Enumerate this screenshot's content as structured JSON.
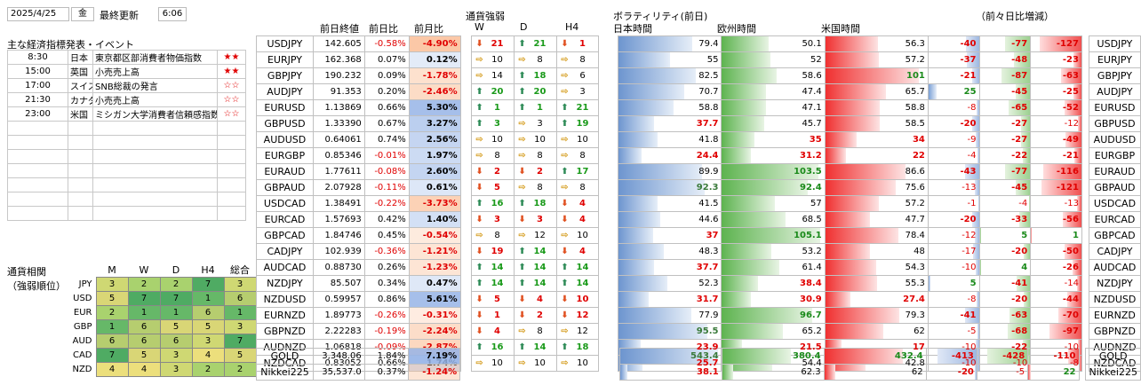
{
  "header": {
    "date": "2025/4/25",
    "weekday": "金",
    "updated_label": "最終更新",
    "time": "6:06"
  },
  "events": {
    "title": "主な経済指標発表・イベント",
    "rows": [
      {
        "time": "8:30",
        "country": "日本",
        "name": "東京都区部消費者物価指数",
        "stars": "★★"
      },
      {
        "time": "15:00",
        "country": "英国",
        "name": "小売売上高",
        "stars": "★★"
      },
      {
        "time": "17:00",
        "country": "スイス",
        "name": "SNB総裁の発言",
        "stars": "☆☆"
      },
      {
        "time": "21:30",
        "country": "カナダ",
        "name": "小売売上高",
        "stars": "☆☆"
      },
      {
        "time": "23:00",
        "country": "米国",
        "name": "ミシガン大学消費者信頼感指数",
        "stars": "☆☆"
      },
      {
        "time": "",
        "country": "",
        "name": "",
        "stars": ""
      },
      {
        "time": "",
        "country": "",
        "name": "",
        "stars": ""
      },
      {
        "time": "",
        "country": "",
        "name": "",
        "stars": ""
      },
      {
        "time": "",
        "country": "",
        "name": "",
        "stars": ""
      },
      {
        "time": "",
        "country": "",
        "name": "",
        "stars": ""
      },
      {
        "time": "",
        "country": "",
        "name": "",
        "stars": ""
      },
      {
        "time": "",
        "country": "",
        "name": "",
        "stars": ""
      }
    ]
  },
  "correlation": {
    "title1": "通貨相関",
    "title2": "（強弱順位）",
    "cols": [
      "M",
      "W",
      "D",
      "H4",
      "総合"
    ],
    "rows": [
      {
        "cur": "JPY",
        "v": [
          3,
          2,
          2,
          7,
          3
        ]
      },
      {
        "cur": "USD",
        "v": [
          5,
          7,
          7,
          1,
          6
        ]
      },
      {
        "cur": "EUR",
        "v": [
          2,
          1,
          1,
          6,
          1
        ]
      },
      {
        "cur": "GBP",
        "v": [
          1,
          6,
          5,
          5,
          3
        ]
      },
      {
        "cur": "AUD",
        "v": [
          6,
          6,
          6,
          3,
          7
        ]
      },
      {
        "cur": "CAD",
        "v": [
          7,
          5,
          3,
          4,
          5
        ]
      },
      {
        "cur": "NZD",
        "v": [
          4,
          4,
          3,
          2,
          2
        ]
      }
    ]
  },
  "col_headers": {
    "prev": "前日終値",
    "dchg": "前日比",
    "mchg": "前月比",
    "strength": "通貨強弱",
    "W": "W",
    "D": "D",
    "H4": "H4",
    "vol": "ボラティリティ(前日)",
    "jp": "日本時間",
    "eu": "欧州時間",
    "us": "米国時間",
    "diff": "（前々日比増減）"
  },
  "rows": [
    {
      "pair": "USDJPY",
      "prev": "142.605",
      "d": "-0.58%",
      "m": "-4.90%",
      "w": [
        "dn",
        "21"
      ],
      "dd": [
        "up",
        "21"
      ],
      "h4": [
        "dn",
        "1"
      ],
      "jp": 79.4,
      "eu": 50.1,
      "us": 56.3,
      "jd": -40,
      "ed": -77,
      "ud": -127
    },
    {
      "pair": "EURJPY",
      "prev": "162.368",
      "d": "0.07%",
      "m": "0.12%",
      "w": [
        "fl",
        "10"
      ],
      "dd": [
        "fl",
        "8"
      ],
      "h4": [
        "fl",
        "8"
      ],
      "jp": 55.0,
      "eu": 52.0,
      "us": 57.2,
      "jd": -37,
      "ed": -48,
      "ud": -23
    },
    {
      "pair": "GBPJPY",
      "prev": "190.232",
      "d": "0.09%",
      "m": "-1.78%",
      "w": [
        "fl",
        "14"
      ],
      "dd": [
        "up",
        "18"
      ],
      "h4": [
        "fl",
        "6"
      ],
      "jp": 82.5,
      "eu": 58.6,
      "us": 101.0,
      "jd": -21,
      "ed": -87,
      "ud": -63
    },
    {
      "pair": "AUDJPY",
      "prev": "91.353",
      "d": "0.20%",
      "m": "-2.46%",
      "w": [
        "up",
        "20"
      ],
      "dd": [
        "up",
        "20"
      ],
      "h4": [
        "fl",
        "3"
      ],
      "jp": 70.7,
      "eu": 47.4,
      "us": 65.7,
      "jd": 25,
      "ed": -45,
      "ud": -25
    },
    {
      "pair": "EURUSD",
      "prev": "1.13869",
      "d": "0.66%",
      "m": "5.30%",
      "w": [
        "up",
        "1"
      ],
      "dd": [
        "up",
        "1"
      ],
      "h4": [
        "up",
        "21"
      ],
      "jp": 58.8,
      "eu": 47.1,
      "us": 58.8,
      "jd": -8,
      "ed": -65,
      "ud": -52
    },
    {
      "pair": "GBPUSD",
      "prev": "1.33390",
      "d": "0.67%",
      "m": "3.27%",
      "w": [
        "up",
        "3"
      ],
      "dd": [
        "fl",
        "3"
      ],
      "h4": [
        "up",
        "19"
      ],
      "jp": 37.7,
      "eu": 45.7,
      "us": 58.5,
      "jd": -20,
      "ed": -27,
      "ud": -12
    },
    {
      "pair": "AUDUSD",
      "prev": "0.64061",
      "d": "0.74%",
      "m": "2.56%",
      "w": [
        "fl",
        "10"
      ],
      "dd": [
        "fl",
        "10"
      ],
      "h4": [
        "fl",
        "10"
      ],
      "jp": 41.8,
      "eu": 35.0,
      "us": 34.0,
      "jd": -9,
      "ed": -27,
      "ud": -49
    },
    {
      "pair": "EURGBP",
      "prev": "0.85346",
      "d": "-0.01%",
      "m": "1.97%",
      "w": [
        "fl",
        "8"
      ],
      "dd": [
        "fl",
        "8"
      ],
      "h4": [
        "fl",
        "8"
      ],
      "jp": 24.4,
      "eu": 31.2,
      "us": 22.0,
      "jd": -4,
      "ed": -22,
      "ud": -21
    },
    {
      "pair": "EURAUD",
      "prev": "1.77611",
      "d": "-0.08%",
      "m": "2.60%",
      "w": [
        "dn",
        "2"
      ],
      "dd": [
        "dn",
        "2"
      ],
      "h4": [
        "up",
        "17"
      ],
      "jp": 89.9,
      "eu": 103.5,
      "us": 86.6,
      "jd": -43,
      "ed": -77,
      "ud": -116
    },
    {
      "pair": "GBPAUD",
      "prev": "2.07928",
      "d": "-0.11%",
      "m": "0.61%",
      "w": [
        "dn",
        "5"
      ],
      "dd": [
        "fl",
        "8"
      ],
      "h4": [
        "fl",
        "8"
      ],
      "jp": 92.3,
      "eu": 92.4,
      "us": 75.6,
      "jd": -13,
      "ed": -45,
      "ud": -121
    },
    {
      "pair": "USDCAD",
      "prev": "1.38491",
      "d": "-0.22%",
      "m": "-3.73%",
      "w": [
        "up",
        "16"
      ],
      "dd": [
        "up",
        "18"
      ],
      "h4": [
        "dn",
        "4"
      ],
      "jp": 41.5,
      "eu": 57.0,
      "us": 57.2,
      "jd": -1,
      "ed": -4,
      "ud": -13
    },
    {
      "pair": "EURCAD",
      "prev": "1.57693",
      "d": "0.42%",
      "m": "1.40%",
      "w": [
        "dn",
        "3"
      ],
      "dd": [
        "dn",
        "3"
      ],
      "h4": [
        "dn",
        "4"
      ],
      "jp": 44.6,
      "eu": 68.5,
      "us": 47.7,
      "jd": -20,
      "ed": -33,
      "ud": -56
    },
    {
      "pair": "GBPCAD",
      "prev": "1.84746",
      "d": "0.45%",
      "m": "-0.54%",
      "w": [
        "fl",
        "8"
      ],
      "dd": [
        "fl",
        "12"
      ],
      "h4": [
        "fl",
        "10"
      ],
      "jp": 37.0,
      "eu": 105.1,
      "us": 78.4,
      "jd": -12,
      "ed": 5,
      "ud": 1
    },
    {
      "pair": "CADJPY",
      "prev": "102.939",
      "d": "-0.36%",
      "m": "-1.21%",
      "w": [
        "dn",
        "19"
      ],
      "dd": [
        "up",
        "14"
      ],
      "h4": [
        "dn",
        "4"
      ],
      "jp": 48.3,
      "eu": 53.2,
      "us": 48.0,
      "jd": -17,
      "ed": -20,
      "ud": -50
    },
    {
      "pair": "AUDCAD",
      "prev": "0.88730",
      "d": "0.26%",
      "m": "-1.23%",
      "w": [
        "up",
        "14"
      ],
      "dd": [
        "up",
        "14"
      ],
      "h4": [
        "up",
        "14"
      ],
      "jp": 37.7,
      "eu": 61.4,
      "us": 54.3,
      "jd": -10,
      "ed": 4,
      "ud": -26
    },
    {
      "pair": "NZDJPY",
      "prev": "85.507",
      "d": "0.34%",
      "m": "0.47%",
      "w": [
        "up",
        "14"
      ],
      "dd": [
        "up",
        "14"
      ],
      "h4": [
        "up",
        "14"
      ],
      "jp": 52.3,
      "eu": 38.4,
      "us": 55.3,
      "jd": 5,
      "ed": -41,
      "ud": -14
    },
    {
      "pair": "NZDUSD",
      "prev": "0.59957",
      "d": "0.86%",
      "m": "5.61%",
      "w": [
        "dn",
        "5"
      ],
      "dd": [
        "dn",
        "4"
      ],
      "h4": [
        "dn",
        "10"
      ],
      "jp": 31.7,
      "eu": 30.9,
      "us": 27.4,
      "jd": -8,
      "ed": -20,
      "ud": -44
    },
    {
      "pair": "EURNZD",
      "prev": "1.89773",
      "d": "-0.26%",
      "m": "-0.31%",
      "w": [
        "dn",
        "1"
      ],
      "dd": [
        "dn",
        "2"
      ],
      "h4": [
        "dn",
        "12"
      ],
      "jp": 77.9,
      "eu": 96.7,
      "us": 79.3,
      "jd": -41,
      "ed": -63,
      "ud": -70
    },
    {
      "pair": "GBPNZD",
      "prev": "2.22283",
      "d": "-0.19%",
      "m": "-2.24%",
      "w": [
        "dn",
        "4"
      ],
      "dd": [
        "fl",
        "8"
      ],
      "h4": [
        "fl",
        "12"
      ],
      "jp": 95.5,
      "eu": 65.2,
      "us": 62.0,
      "jd": -5,
      "ed": -68,
      "ud": -97
    },
    {
      "pair": "AUDNZD",
      "prev": "1.06818",
      "d": "-0.09%",
      "m": "-2.87%",
      "w": [
        "up",
        "16"
      ],
      "dd": [
        "up",
        "14"
      ],
      "h4": [
        "up",
        "18"
      ],
      "jp": 23.9,
      "eu": 21.5,
      "us": 17.0,
      "jd": -10,
      "ed": -22,
      "ud": -10
    },
    {
      "pair": "NZDCAD",
      "prev": "0.83052",
      "d": "0.66%",
      "m": "1.74%",
      "w": [
        "fl",
        "10"
      ],
      "dd": [
        "fl",
        "10"
      ],
      "h4": [
        "fl",
        "10"
      ],
      "jp": 25.7,
      "eu": 54.4,
      "us": 42.8,
      "jd": -10,
      "ed": -10,
      "ud": -8
    }
  ],
  "extra": [
    {
      "pair": "GOLD",
      "prev": "3,348.06",
      "d": "1.84%",
      "m": "7.19%",
      "jp": 543.4,
      "eu": 380.4,
      "us": 432.4,
      "jd": -413,
      "ed": -428,
      "ud": -110
    },
    {
      "pair": "Nikkei225",
      "prev": "35,537.0",
      "d": "0.37%",
      "m": "-1.24%",
      "jp": 38.1,
      "eu": 62.3,
      "us": 62.0,
      "jd": -20,
      "ed": -5,
      "ud": 22
    }
  ]
}
